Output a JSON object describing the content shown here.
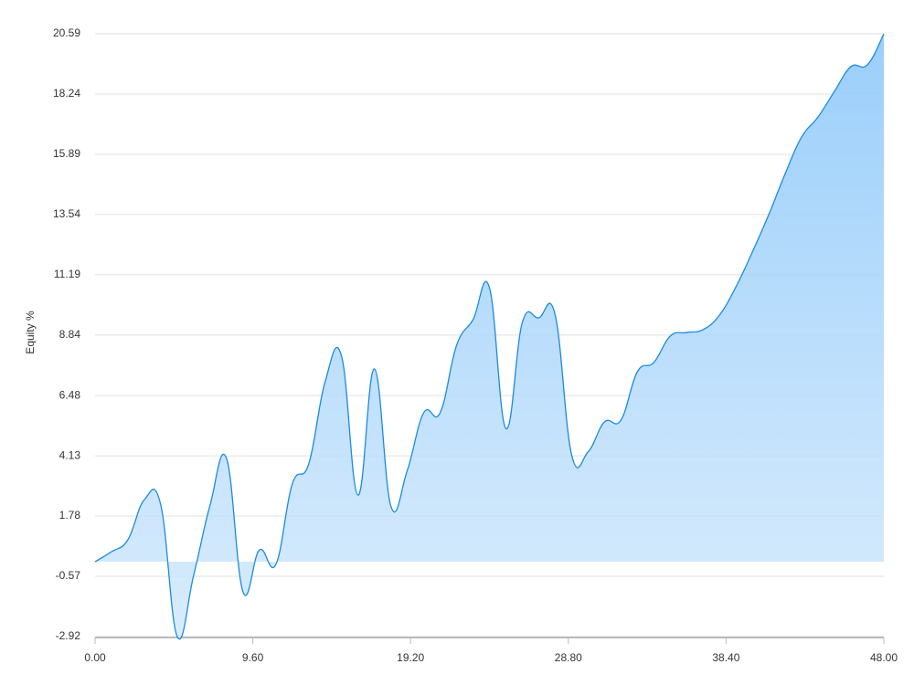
{
  "chart_data": {
    "type": "area",
    "y_label": "Equity %",
    "x": [
      0,
      1,
      2,
      3,
      4,
      5,
      6,
      7,
      8,
      9,
      10,
      11,
      12,
      13,
      14,
      15,
      16,
      17,
      18,
      19,
      20,
      21,
      22,
      23,
      24,
      25,
      26,
      27,
      28,
      29,
      30,
      31,
      32,
      33,
      34,
      35,
      36,
      37,
      38,
      39,
      40,
      41,
      42,
      43,
      44,
      45,
      46,
      47,
      48
    ],
    "series": [
      {
        "name": "Equity",
        "color": "#1a8be0",
        "values": [
          0,
          0.39,
          0.86,
          2.42,
          2.21,
          -2.92,
          -0.53,
          2.21,
          4.03,
          -1.17,
          0.46,
          -0.11,
          3.03,
          3.81,
          7.02,
          8.02,
          2.6,
          7.52,
          2.17,
          3.56,
          5.81,
          5.81,
          8.44,
          9.44,
          10.69,
          5.2,
          9.33,
          9.51,
          9.62,
          4.17,
          4.28,
          5.45,
          5.52,
          7.41,
          7.77,
          8.8,
          8.94,
          9.05,
          9.62,
          10.72,
          12.08,
          13.54,
          15.14,
          16.57,
          17.35,
          18.35,
          19.31,
          19.38,
          20.59
        ]
      }
    ],
    "xlim": [
      0,
      48
    ],
    "xticks": [
      {
        "value": 0,
        "label": "0.00"
      },
      {
        "value": 9.6,
        "label": "9.60"
      },
      {
        "value": 19.2,
        "label": "19.20"
      },
      {
        "value": 28.8,
        "label": "28.80"
      },
      {
        "value": 38.4,
        "label": "38.40"
      },
      {
        "value": 48,
        "label": "48.00"
      }
    ],
    "ylim": [
      -2.92,
      20.59
    ],
    "yticks": [
      -2.92,
      -0.57,
      1.78,
      4.13,
      6.48,
      8.84,
      11.19,
      13.54,
      15.89,
      18.24,
      20.59
    ],
    "grid": true
  }
}
